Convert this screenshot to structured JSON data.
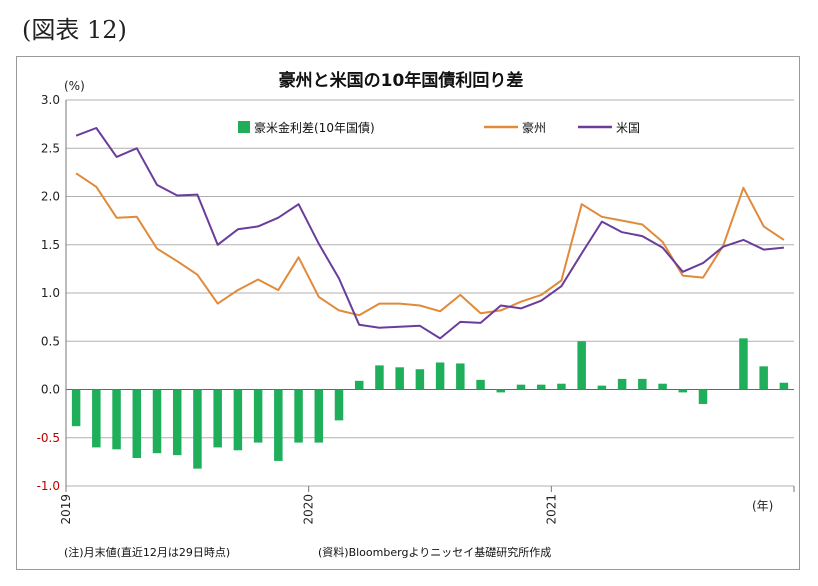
{
  "figure_label": "(図表 12)",
  "footer": {
    "note": "(注)月末値(直近12月は29日時点)",
    "source": "(資料)Bloombergよりニッセイ基礎研究所作成"
  },
  "chart_data": {
    "type": "bar+line",
    "title": "豪州と米国の10年国債利回り差",
    "ylabel": "(%)",
    "xlabel": "(年)",
    "ylim": [
      -1.0,
      3.0
    ],
    "yticks": [
      "3.0",
      "2.5",
      "2.0",
      "1.5",
      "1.0",
      "0.5",
      "0.0",
      "-0.5",
      "-1.0"
    ],
    "x_year_labels": [
      "2019",
      "2020",
      "2021"
    ],
    "months": [
      "2019-01",
      "2019-02",
      "2019-03",
      "2019-04",
      "2019-05",
      "2019-06",
      "2019-07",
      "2019-08",
      "2019-09",
      "2019-10",
      "2019-11",
      "2019-12",
      "2020-01",
      "2020-02",
      "2020-03",
      "2020-04",
      "2020-05",
      "2020-06",
      "2020-07",
      "2020-08",
      "2020-09",
      "2020-10",
      "2020-11",
      "2020-12",
      "2021-01",
      "2021-02",
      "2021-03",
      "2021-04",
      "2021-05",
      "2021-06",
      "2021-07",
      "2021-08",
      "2021-09",
      "2021-10",
      "2021-11",
      "2021-12"
    ],
    "grid": true,
    "legend_position": "top",
    "colors": {
      "spread": "#1fae5a",
      "australia": "#e08a3a",
      "us": "#6a3d9a",
      "negative_tick": "#c00000"
    },
    "series": [
      {
        "name": "豪米金利差(10年国債)",
        "type": "bar",
        "values": [
          -0.38,
          -0.6,
          -0.62,
          -0.71,
          -0.66,
          -0.68,
          -0.82,
          -0.6,
          -0.63,
          -0.55,
          -0.74,
          -0.55,
          -0.55,
          -0.32,
          0.09,
          0.25,
          0.23,
          0.21,
          0.28,
          0.27,
          0.1,
          -0.03,
          0.05,
          0.05,
          0.06,
          0.5,
          0.04,
          0.11,
          0.11,
          0.06,
          -0.03,
          -0.15,
          0.0,
          0.53,
          0.24,
          0.07
        ]
      },
      {
        "name": "豪州",
        "type": "line",
        "values": [
          2.24,
          2.1,
          1.78,
          1.79,
          1.46,
          1.33,
          1.19,
          0.89,
          1.03,
          1.14,
          1.03,
          1.37,
          0.96,
          0.82,
          0.77,
          0.89,
          0.89,
          0.87,
          0.81,
          0.98,
          0.79,
          0.82,
          0.91,
          0.98,
          1.13,
          1.92,
          1.79,
          1.75,
          1.71,
          1.53,
          1.18,
          1.16,
          1.49,
          2.09,
          1.69,
          1.55
        ]
      },
      {
        "name": "米国",
        "type": "line",
        "values": [
          2.63,
          2.71,
          2.41,
          2.5,
          2.12,
          2.01,
          2.02,
          1.5,
          1.66,
          1.69,
          1.78,
          1.92,
          1.51,
          1.15,
          0.67,
          0.64,
          0.65,
          0.66,
          0.53,
          0.7,
          0.69,
          0.87,
          0.84,
          0.92,
          1.07,
          1.41,
          1.74,
          1.63,
          1.59,
          1.47,
          1.22,
          1.31,
          1.48,
          1.55,
          1.45,
          1.47
        ]
      }
    ]
  }
}
